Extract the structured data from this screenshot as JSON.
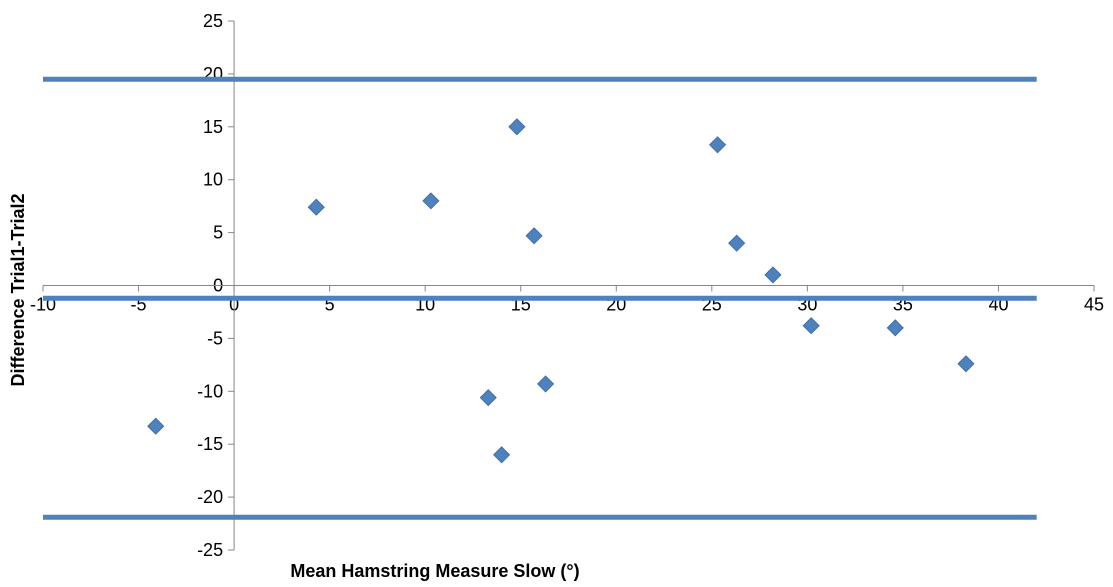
{
  "chart_data": {
    "type": "scatter",
    "title": "",
    "xlabel": "Mean Hamstring Measure Slow (°)",
    "ylabel": "Difference Trial1-Trial2",
    "xlim": [
      -10,
      45
    ],
    "ylim": [
      -25,
      25
    ],
    "x_ticks": [
      -10,
      -5,
      0,
      5,
      10,
      15,
      20,
      25,
      30,
      35,
      40,
      45
    ],
    "y_ticks": [
      -25,
      -20,
      -15,
      -10,
      -5,
      0,
      5,
      10,
      15,
      20,
      25
    ],
    "grid": false,
    "legend": "none",
    "marker_color": "#4F81BD",
    "series": [
      {
        "points": [
          {
            "x": -4.1,
            "y": -13.3
          },
          {
            "x": 4.3,
            "y": 7.4
          },
          {
            "x": 10.3,
            "y": 8.0
          },
          {
            "x": 13.3,
            "y": -10.6
          },
          {
            "x": 14.0,
            "y": -16.0
          },
          {
            "x": 14.8,
            "y": 15.0
          },
          {
            "x": 15.7,
            "y": 4.7
          },
          {
            "x": 16.3,
            "y": -9.3
          },
          {
            "x": 25.3,
            "y": 13.3
          },
          {
            "x": 26.3,
            "y": 4.0
          },
          {
            "x": 28.2,
            "y": 1.0
          },
          {
            "x": 30.2,
            "y": -3.8
          },
          {
            "x": 34.6,
            "y": -4.0
          },
          {
            "x": 38.3,
            "y": -7.4
          }
        ]
      }
    ],
    "reference_lines": [
      {
        "y": 19.5,
        "x_range": [
          -10,
          42
        ],
        "color": "#4F81BD"
      },
      {
        "y": -1.2,
        "x_range": [
          -10,
          42
        ],
        "color": "#4F81BD"
      },
      {
        "y": -21.9,
        "x_range": [
          -10,
          42
        ],
        "color": "#4F81BD"
      }
    ]
  }
}
